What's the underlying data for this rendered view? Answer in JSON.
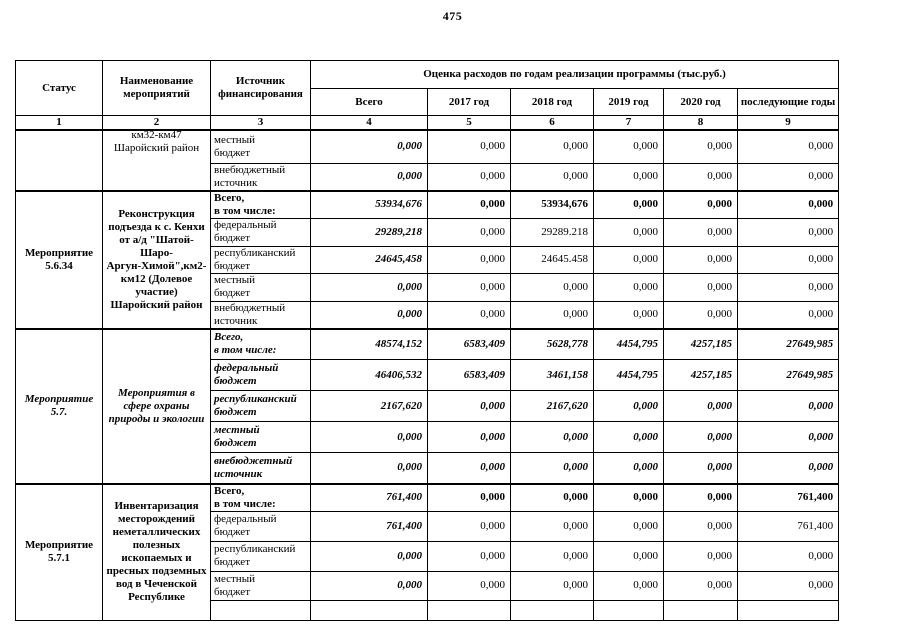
{
  "page": {
    "number": "475"
  },
  "table": {
    "header": {
      "col_status": "Статус",
      "col_name": "Наименование\nмероприятий",
      "col_source": "Источник\nфинансирования",
      "col_group": "Оценка расходов по годам реализации  программы (тыс.руб.)",
      "year_cols": [
        "Всего",
        "2017 год",
        "2018 год",
        "2019 год",
        "2020 год",
        "последующие годы"
      ],
      "index_row": [
        "1",
        "2",
        "3",
        "4",
        "5",
        "6",
        "7",
        "8",
        "9"
      ]
    },
    "sections": [
      {
        "status": "",
        "name": "км32-км47\nШаройский район",
        "clip_top": true,
        "rows": [
          {
            "source": "местный\nбюджет",
            "values": [
              "0,000",
              "0,000",
              "0,000",
              "0,000",
              "0,000",
              "0,000"
            ]
          },
          {
            "source": "внебюджетный\nисточник",
            "values": [
              "0,000",
              "0,000",
              "0,000",
              "0,000",
              "0,000",
              "0,000"
            ]
          }
        ]
      },
      {
        "status": "Мероприятие\n5.6.34",
        "name": "Реконструкция\nподъезда к с. Кенхи\nот а/д \"Шатой-Шаро-\nАргун-Химой\",км2-\nкм12 (Долевое\nучастие)\nШаройский район",
        "rows": [
          {
            "source": "Всего,\nв том числе:",
            "bold": true,
            "values": [
              "53934,676",
              "0,000",
              "53934,676",
              "0,000",
              "0,000",
              "0,000"
            ]
          },
          {
            "source": "федеральный\nбюджет",
            "values": [
              "29289,218",
              "0,000",
              "29289.218",
              "0,000",
              "0,000",
              "0,000"
            ]
          },
          {
            "source": "республиканский\nбюджет",
            "values": [
              "24645,458",
              "0,000",
              "24645.458",
              "0,000",
              "0,000",
              "0,000"
            ]
          },
          {
            "source": "местный\nбюджет",
            "values": [
              "0,000",
              "0,000",
              "0,000",
              "0,000",
              "0,000",
              "0,000"
            ]
          },
          {
            "source": "внебюджетный\nисточник",
            "values": [
              "0,000",
              "0,000",
              "0,000",
              "0,000",
              "0,000",
              "0,000"
            ]
          }
        ]
      },
      {
        "status": "Мероприятие\n5.7.",
        "name": "Мероприятия в\nсфере охраны\nприроды и  экологии",
        "emphasis": "bold-italic",
        "rows": [
          {
            "source": "Всего,\nв том числе:",
            "values": [
              "48574,152",
              "6583,409",
              "5628,778",
              "4454,795",
              "4257,185",
              "27649,985"
            ]
          },
          {
            "source": "федеральный\nбюджет",
            "values": [
              "46406,532",
              "6583,409",
              "3461,158",
              "4454,795",
              "4257,185",
              "27649,985"
            ]
          },
          {
            "source": "республиканский\nбюджет",
            "values": [
              "2167,620",
              "0,000",
              "2167,620",
              "0,000",
              "0,000",
              "0,000"
            ]
          },
          {
            "source": "местный\nбюджет",
            "values": [
              "0,000",
              "0,000",
              "0,000",
              "0,000",
              "0,000",
              "0,000"
            ]
          },
          {
            "source": "внебюджетный\nисточник",
            "values": [
              "0,000",
              "0,000",
              "0,000",
              "0,000",
              "0,000",
              "0,000"
            ]
          }
        ]
      },
      {
        "status": "Мероприятие\n5.7.1",
        "name": "Инвентаризация\nместорождений\nнеметаллических\nполезных\nископаемых и\nпресных подземных\nвод в Чеченской\nРеспублике",
        "rows": [
          {
            "source": "Всего,\nв том числе:",
            "bold": true,
            "values": [
              "761,400",
              "0,000",
              "0,000",
              "0,000",
              "0,000",
              "761,400"
            ]
          },
          {
            "source": "федеральный\nбюджет",
            "values": [
              "761,400",
              "0,000",
              "0,000",
              "0,000",
              "0,000",
              "761,400"
            ]
          },
          {
            "source": "республиканский\nбюджет",
            "values": [
              "0,000",
              "0,000",
              "0,000",
              "0,000",
              "0,000",
              "0,000"
            ]
          },
          {
            "source": "местный\nбюджет",
            "values": [
              "0,000",
              "0,000",
              "0,000",
              "0,000",
              "0,000",
              "0,000"
            ]
          },
          {
            "source": "",
            "values": [
              "",
              "",
              "",
              "",
              "",
              ""
            ]
          }
        ]
      }
    ]
  }
}
